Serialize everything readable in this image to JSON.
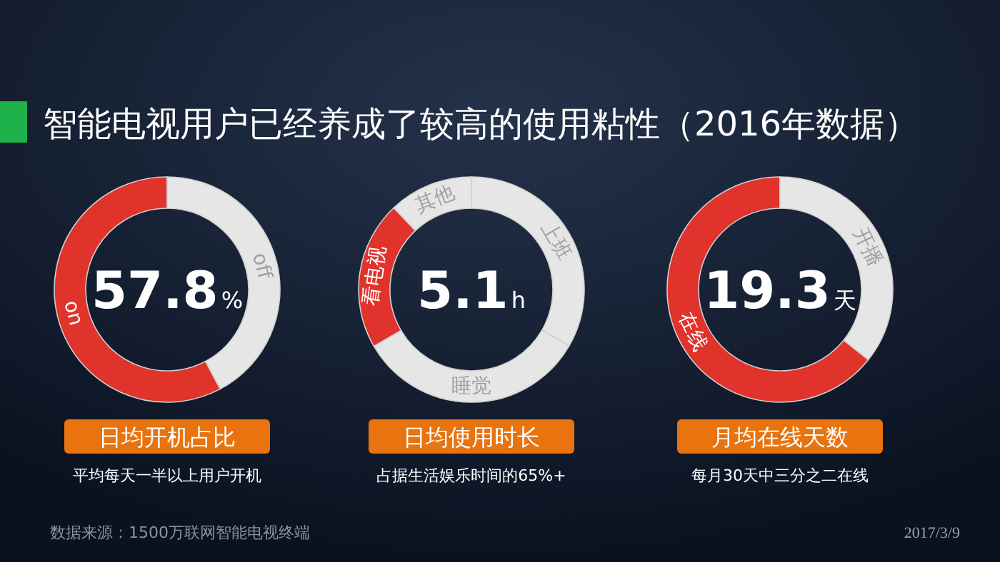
{
  "chart_data": [
    {
      "type": "other",
      "title": "智能电视用户已经养成了较高的使用粘性（2016年数据）",
      "annotations": [
        "数据来源：1500万联网智能电视终端",
        "2017/3/9"
      ]
    },
    {
      "type": "donut",
      "title": "日均开机占比",
      "subtitle": "平均每天一半以上用户开机",
      "annotations": [
        "57.8%"
      ],
      "categories": [
        "on",
        "off"
      ],
      "values": [
        57.8,
        42.2
      ],
      "colors": [
        "#e0332b",
        "#e6e6e6"
      ]
    },
    {
      "type": "donut",
      "title": "日均使用时长",
      "subtitle": "占据生活娱乐时间的65%+",
      "annotations": [
        "5.1h"
      ],
      "categories": [
        "其他",
        "看电视",
        "睡觉",
        "上班"
      ],
      "values": [
        12.1,
        21.3,
        33.3,
        33.3
      ],
      "colors": [
        "#e6e6e6",
        "#e0332b",
        "#e6e6e6",
        "#e6e6e6"
      ]
    },
    {
      "type": "donut",
      "title": "月均在线天数",
      "subtitle": "每月30天中三分之二在线",
      "annotations": [
        "19.3天"
      ],
      "categories": [
        "在线",
        "开播"
      ],
      "values": [
        64.3,
        35.7
      ],
      "colors": [
        "#e0332b",
        "#e6e6e6"
      ]
    }
  ]
}
